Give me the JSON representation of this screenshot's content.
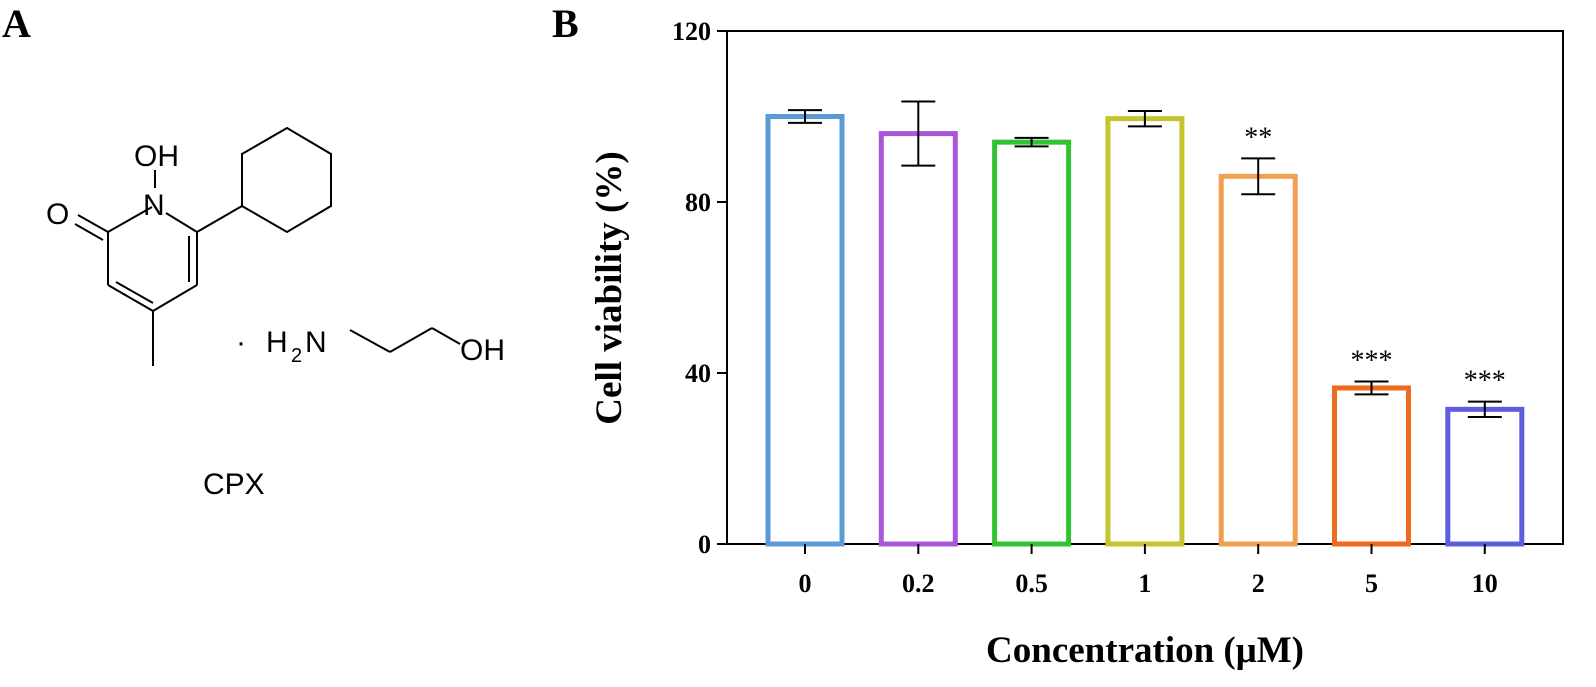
{
  "panel_a": {
    "label": "A",
    "compound_name": "CPX",
    "structure_labels": {
      "hydroxyl_n": "OH",
      "nitrogen": "N",
      "oxygen": "O",
      "salt_dot": "·",
      "amine_h2": "H",
      "amine_sub": "2",
      "amine_n": "N",
      "ethanol_oh": "OH"
    }
  },
  "panel_b": {
    "label": "B"
  },
  "chart_data": {
    "type": "bar",
    "categories": [
      "0",
      "0.2",
      "0.5",
      "1",
      "2",
      "5",
      "10"
    ],
    "values": [
      100,
      96,
      94,
      99.5,
      86,
      36.5,
      31.5
    ],
    "errors": [
      1.5,
      7.5,
      1.0,
      1.8,
      4.2,
      1.5,
      1.8
    ],
    "significance": [
      "",
      "",
      "",
      "",
      "**",
      "***",
      "***"
    ],
    "colors": [
      "#5b9bd5",
      "#a857d8",
      "#33c233",
      "#c4c42e",
      "#f0a050",
      "#ee6a1c",
      "#5d5de0"
    ],
    "xlabel": "Concentration (μM)",
    "ylabel": "Cell viability (%)",
    "ylim": [
      0,
      120
    ],
    "yticks": [
      0,
      40,
      80,
      120
    ],
    "grid": false,
    "legend": "none"
  }
}
